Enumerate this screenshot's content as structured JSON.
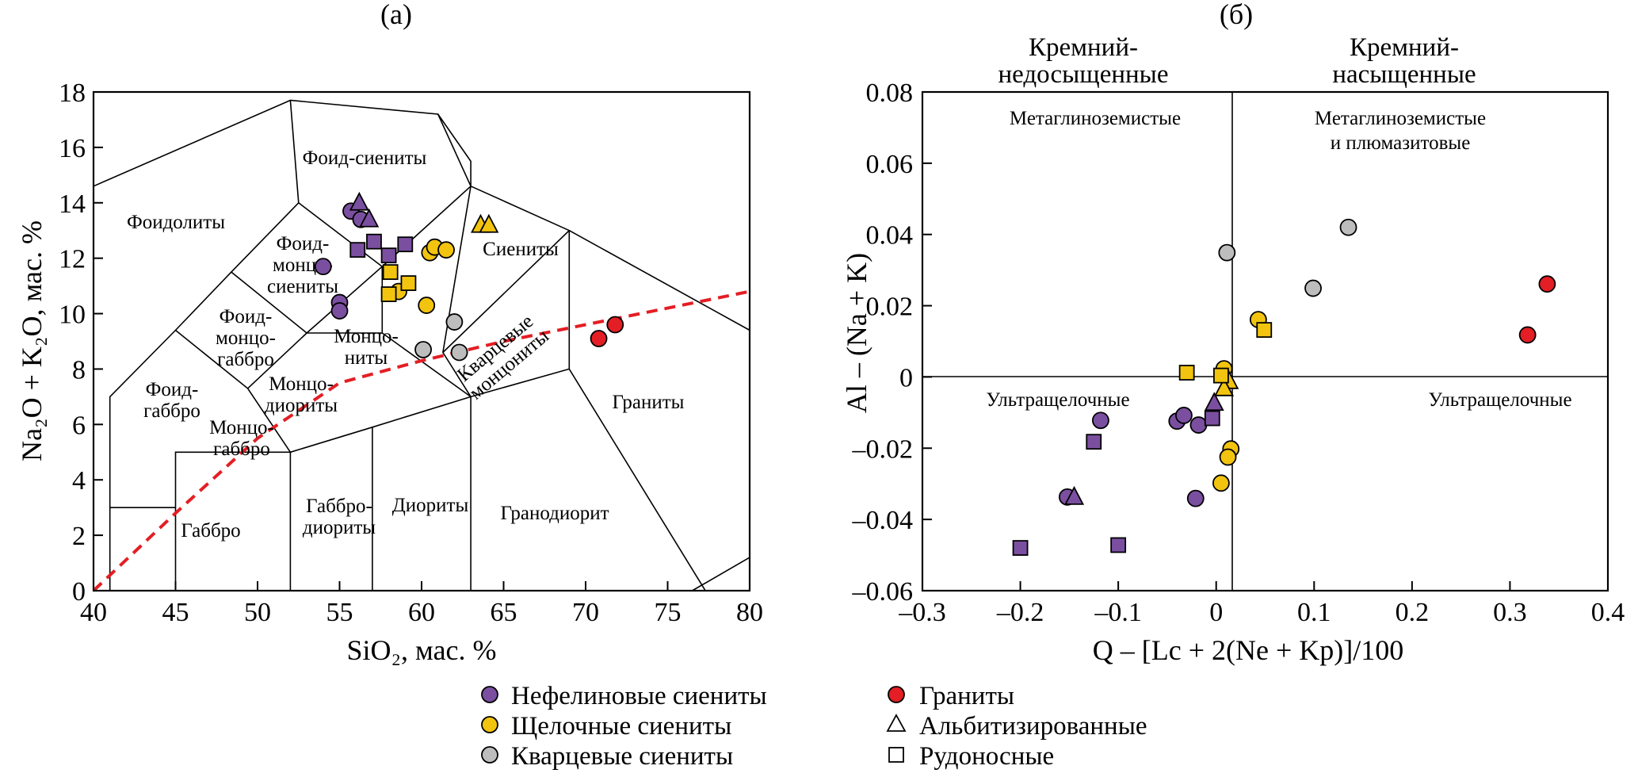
{
  "legend": {
    "items": [
      {
        "label": "Нефелиновые сиениты",
        "marker": "circle",
        "color": "#7b4fa0"
      },
      {
        "label": "Щелочные сиениты",
        "marker": "circle",
        "color": "#f2c40f"
      },
      {
        "label": "Кварцевые сиениты",
        "marker": "circle",
        "color": "#bdbdbd"
      },
      {
        "label": "Граниты",
        "marker": "circle",
        "color": "#e31e24"
      },
      {
        "label": "Альбитизированные",
        "marker": "triangle",
        "color": "#ffffff"
      },
      {
        "label": "Рудоносные",
        "marker": "square",
        "color": "#ffffff"
      }
    ]
  },
  "chart_data": [
    {
      "panel": "(а)",
      "type": "scatter",
      "xlabel": "SiO₂, мас. %",
      "ylabel": "Na₂O + K₂O, мас. %",
      "xlim": [
        40,
        80
      ],
      "ylim": [
        0,
        18
      ],
      "xticks": [
        "40",
        "45",
        "50",
        "55",
        "60",
        "65",
        "70",
        "75",
        "80"
      ],
      "yticks": [
        "0",
        "2",
        "4",
        "6",
        "8",
        "10",
        "12",
        "14",
        "16",
        "18"
      ],
      "fields": [
        "Фоид-сиениты",
        "Фоидолиты",
        "Фоид-",
        "монцо-",
        "сиениты",
        "Сиениты",
        "Фоид-",
        "монцо-",
        "габбро",
        "Кварцевые",
        "монцониты",
        "Монцо-",
        "ниты",
        "Фоид-",
        "габбро",
        "Монцо-",
        "диориты",
        "Монцо-",
        "габбро",
        "Граниты",
        "Габбро-",
        "диориты",
        "Диориты",
        "Гранодиорит",
        "Габбро"
      ],
      "boundaries": [
        [
          [
            41,
            0
          ],
          [
            41,
            7
          ],
          [
            45,
            9.4
          ],
          [
            48.4,
            11.5
          ],
          [
            52.5,
            14
          ],
          [
            57.6,
            11.7
          ],
          [
            63,
            14.6
          ],
          [
            61,
            17.2
          ],
          [
            52,
            17.7
          ],
          [
            40,
            14.6
          ]
        ],
        [
          [
            52,
            17.7
          ],
          [
            52.5,
            14
          ]
        ],
        [
          [
            45,
            9.4
          ],
          [
            49.4,
            7.3
          ],
          [
            52,
            5
          ],
          [
            45,
            5
          ],
          [
            45,
            0
          ]
        ],
        [
          [
            41,
            3
          ],
          [
            45,
            3
          ]
        ],
        [
          [
            49.4,
            7.3
          ],
          [
            53,
            9.3
          ],
          [
            48.4,
            11.5
          ]
        ],
        [
          [
            53,
            9.3
          ],
          [
            57.6,
            11.7
          ]
        ],
        [
          [
            52,
            5
          ],
          [
            57,
            5.9
          ],
          [
            63,
            7
          ],
          [
            69,
            8
          ],
          [
            77.3,
            0
          ]
        ],
        [
          [
            52,
            0
          ],
          [
            52,
            5
          ]
        ],
        [
          [
            57,
            0
          ],
          [
            57,
            5.9
          ]
        ],
        [
          [
            63,
            0
          ],
          [
            63,
            7
          ]
        ],
        [
          [
            63,
            7
          ],
          [
            57.6,
            9.3
          ],
          [
            53,
            9.3
          ]
        ],
        [
          [
            57.6,
            9.3
          ],
          [
            57.6,
            11.7
          ]
        ],
        [
          [
            63,
            7
          ],
          [
            61.3,
            8.6
          ],
          [
            63,
            14.6
          ]
        ],
        [
          [
            61.3,
            8.6
          ],
          [
            69,
            13
          ],
          [
            63,
            14.6
          ]
        ],
        [
          [
            69,
            13
          ],
          [
            69,
            8
          ]
        ],
        [
          [
            69,
            13
          ],
          [
            80,
            9.4
          ]
        ],
        [
          [
            76.5,
            0
          ],
          [
            80,
            1.2
          ]
        ],
        [
          [
            63,
            14.6
          ],
          [
            63,
            15.5
          ],
          [
            61,
            17.2
          ]
        ]
      ],
      "alkaline_line": [
        [
          40,
          0
        ],
        [
          45,
          2.8
        ],
        [
          50,
          5.5
        ],
        [
          55,
          7.5
        ],
        [
          60,
          8.3
        ],
        [
          65,
          9
        ],
        [
          70,
          9.6
        ],
        [
          75,
          10.2
        ],
        [
          80,
          10.8
        ]
      ],
      "series": [
        {
          "name": "Нефелиновые сиениты",
          "marker": "circle",
          "color": "#7b4fa0",
          "x": [
            54,
            55,
            55,
            55.7,
            56.3
          ],
          "y": [
            11.7,
            10.4,
            10.1,
            13.7,
            13.4
          ]
        },
        {
          "name": "Нефелиновые сиениты",
          "marker": "triangle",
          "color": "#7b4fa0",
          "x": [
            56.2,
            56.8
          ],
          "y": [
            14,
            13.4
          ]
        },
        {
          "name": "Нефелиновые сиениты",
          "marker": "square",
          "color": "#7b4fa0",
          "x": [
            56.1,
            57.1,
            58,
            59
          ],
          "y": [
            12.3,
            12.6,
            12.1,
            12.5
          ]
        },
        {
          "name": "Щелочные сиениты",
          "marker": "circle",
          "color": "#f2c40f",
          "x": [
            58.6,
            60.3,
            60.5,
            60.8,
            61.5
          ],
          "y": [
            10.8,
            10.3,
            12.2,
            12.4,
            12.3
          ]
        },
        {
          "name": "Щелочные сиениты",
          "marker": "triangle",
          "color": "#f2c40f",
          "x": [
            63.6,
            64.1
          ],
          "y": [
            13.2,
            13.2
          ]
        },
        {
          "name": "Щелочные сиениты",
          "marker": "square",
          "color": "#f2c40f",
          "x": [
            58,
            58.1,
            59.2
          ],
          "y": [
            10.7,
            11.5,
            11.1
          ]
        },
        {
          "name": "Кварцевые сиениты",
          "marker": "circle",
          "color": "#bdbdbd",
          "x": [
            60.1,
            62,
            62.3
          ],
          "y": [
            8.7,
            9.7,
            8.6
          ]
        },
        {
          "name": "Граниты",
          "marker": "circle",
          "color": "#e31e24",
          "x": [
            70.8,
            71.8
          ],
          "y": [
            9.1,
            9.6
          ]
        }
      ]
    },
    {
      "panel": "(б)",
      "type": "scatter",
      "xlabel": "Q – [Lc + 2(Ne + Kp)]/100",
      "ylabel": "Al – (Na + K)",
      "xlim": [
        -0.3,
        0.4
      ],
      "ylim": [
        -0.06,
        0.08
      ],
      "xticks": [
        "–0.3",
        "–0.2",
        "–0.1",
        "0",
        "0.1",
        "0.2",
        "0.3",
        "0.4"
      ],
      "yticks": [
        "–0.06",
        "–0.04",
        "–0.02",
        "0",
        "0.02",
        "0.04",
        "0.06",
        "0.08"
      ],
      "headers": {
        "left": [
          "Кремний-",
          "недосыщенные"
        ],
        "right": [
          "Кремний-",
          "насыщенные"
        ]
      },
      "quadrants": {
        "top_left": [
          "Метаглиноземистые"
        ],
        "top_right": [
          "Метаглиноземистые",
          "и плюмазитовые"
        ],
        "bottom_left": [
          "Ультращелочные"
        ],
        "bottom_right": [
          "Ультращелочные"
        ]
      },
      "series": [
        {
          "name": "Нефелиновые сиениты",
          "marker": "circle",
          "color": "#7b4fa0",
          "x": [
            -0.118,
            -0.152,
            -0.04,
            -0.033,
            -0.018,
            -0.021
          ],
          "y": [
            -0.0122,
            -0.0337,
            -0.0124,
            -0.0108,
            -0.0135,
            -0.0341
          ]
        },
        {
          "name": "Нефелиновые сиениты",
          "marker": "triangle",
          "color": "#7b4fa0",
          "x": [
            -0.145,
            -0.002
          ],
          "y": [
            -0.0337,
            -0.0073
          ]
        },
        {
          "name": "Нефелиновые сиениты",
          "marker": "square",
          "color": "#7b4fa0",
          "x": [
            -0.2,
            -0.125,
            -0.1,
            -0.004
          ],
          "y": [
            -0.048,
            -0.0182,
            -0.0472,
            -0.0116
          ]
        },
        {
          "name": "Щелочные сиениты",
          "marker": "circle",
          "color": "#f2c40f",
          "x": [
            0.008,
            0.015,
            0.012,
            0.005,
            0.043
          ],
          "y": [
            0.0023,
            -0.0202,
            -0.0225,
            -0.0298,
            0.0161
          ]
        },
        {
          "name": "Щелочные сиениты",
          "marker": "triangle",
          "color": "#f2c40f",
          "x": [
            0.013,
            0.008
          ],
          "y": [
            -0.0012,
            -0.0032
          ]
        },
        {
          "name": "Щелочные сиениты",
          "marker": "square",
          "color": "#f2c40f",
          "x": [
            -0.03,
            0.005,
            0.049
          ],
          "y": [
            0.0012,
            0.0004,
            0.0132
          ]
        },
        {
          "name": "Кварцевые сиениты",
          "marker": "circle",
          "color": "#bdbdbd",
          "x": [
            0.011,
            0.099,
            0.135
          ],
          "y": [
            0.0349,
            0.0249,
            0.042
          ]
        },
        {
          "name": "Граниты",
          "marker": "circle",
          "color": "#e31e24",
          "x": [
            0.318,
            0.338
          ],
          "y": [
            0.0118,
            0.0261
          ]
        }
      ]
    }
  ]
}
